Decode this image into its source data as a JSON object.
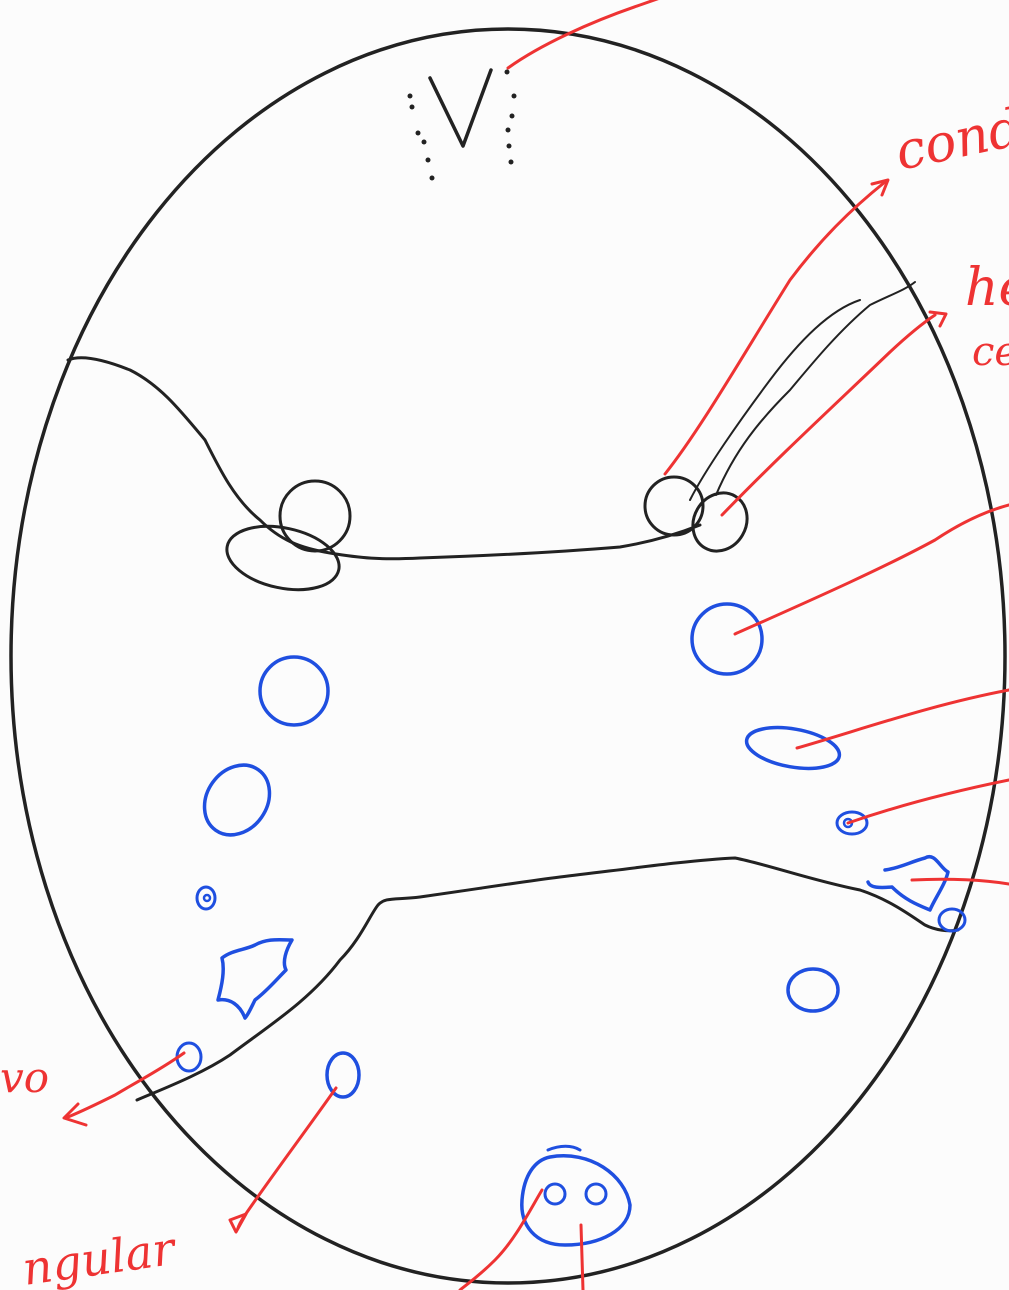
{
  "colors": {
    "background": "#fcfcfc",
    "outline": "#222222",
    "annotation": "#ee3333",
    "structure": "#1f4fe0"
  },
  "labels": {
    "top_right": "condu",
    "right_upper_line1": "he",
    "right_upper_line2": "ce",
    "left_middle": "vo",
    "bottom_left": "ngular"
  }
}
